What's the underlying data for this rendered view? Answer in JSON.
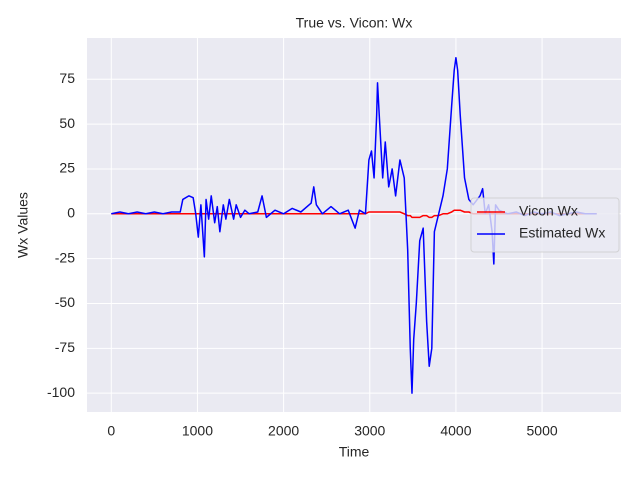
{
  "chart_data": {
    "type": "line",
    "title": "True vs. Vicon: Wx",
    "x_label": "Time",
    "y_label": "Wx Values",
    "x": [
      0,
      100,
      200,
      300,
      400,
      500,
      600,
      700,
      800,
      830,
      900,
      950,
      980,
      1010,
      1040,
      1080,
      1100,
      1130,
      1160,
      1200,
      1230,
      1260,
      1300,
      1330,
      1370,
      1420,
      1450,
      1500,
      1550,
      1600,
      1700,
      1750,
      1800,
      1900,
      2000,
      2100,
      2200,
      2320,
      2350,
      2380,
      2450,
      2550,
      2650,
      2750,
      2830,
      2880,
      2950,
      2990,
      3020,
      3050,
      3080,
      3090,
      3110,
      3150,
      3180,
      3220,
      3260,
      3300,
      3350,
      3400,
      3440,
      3470,
      3490,
      3510,
      3540,
      3580,
      3620,
      3660,
      3690,
      3720,
      3750,
      3800,
      3850,
      3900,
      3950,
      3980,
      4000,
      4020,
      4050,
      4100,
      4150,
      4200,
      4280,
      4310,
      4340,
      4380,
      4420,
      4440,
      4460,
      4500,
      4600,
      4700,
      4800,
      4900,
      5000,
      5100,
      5200,
      5300,
      5400,
      5500,
      5634
    ],
    "series": [
      {
        "name": "Vicon Wx",
        "color": "#ff0000",
        "values": [
          0,
          0,
          0,
          0,
          0,
          0,
          0,
          0,
          0,
          0,
          0,
          0,
          0,
          0,
          0,
          0,
          0,
          0,
          0,
          0,
          0,
          0,
          0,
          0,
          0,
          0,
          0,
          0,
          0,
          0,
          0,
          0,
          0,
          0,
          0,
          0,
          0,
          0,
          0,
          0,
          0,
          0,
          0,
          0,
          0,
          0,
          0,
          1,
          1,
          1,
          1,
          1,
          1,
          1,
          1,
          1,
          1,
          1,
          1,
          0,
          -1,
          -1,
          -2,
          -2,
          -2,
          -2,
          -1,
          -1,
          -2,
          -2,
          -1,
          -1,
          0,
          0,
          1,
          2,
          2,
          2,
          2,
          1,
          1,
          0,
          0,
          0,
          0,
          0,
          0,
          0,
          0,
          0,
          0,
          0,
          0,
          0,
          0,
          0,
          0,
          0,
          0,
          0,
          0
        ]
      },
      {
        "name": "Estimated Wx",
        "color": "#0000ff",
        "values": [
          0,
          1,
          0,
          1,
          0,
          1,
          0,
          1,
          1,
          8,
          10,
          9,
          0,
          -13,
          5,
          -24,
          8,
          -3,
          10,
          -5,
          4,
          -10,
          5,
          -3,
          8,
          -3,
          5,
          -2,
          2,
          0,
          1,
          10,
          -2,
          2,
          0,
          3,
          1,
          6,
          15,
          5,
          0,
          4,
          0,
          2,
          -8,
          2,
          0,
          30,
          35,
          20,
          55,
          73,
          55,
          20,
          40,
          15,
          25,
          10,
          30,
          20,
          -20,
          -75,
          -100,
          -70,
          -50,
          -15,
          -8,
          -60,
          -85,
          -75,
          -10,
          0,
          10,
          25,
          60,
          80,
          87,
          80,
          55,
          20,
          8,
          5,
          10,
          14,
          0,
          5,
          -10,
          -28,
          5,
          2,
          0,
          1,
          -1,
          1,
          0,
          1,
          -1,
          0,
          1,
          0,
          0
        ]
      }
    ],
    "xlim": [
      -282,
      5916
    ],
    "ylim": [
      -110.5,
      98
    ],
    "xticks": [
      0,
      1000,
      2000,
      3000,
      4000,
      5000
    ],
    "yticks": [
      -100,
      -75,
      -50,
      -25,
      0,
      25,
      50,
      75
    ],
    "grid": true,
    "legend": "center right"
  }
}
